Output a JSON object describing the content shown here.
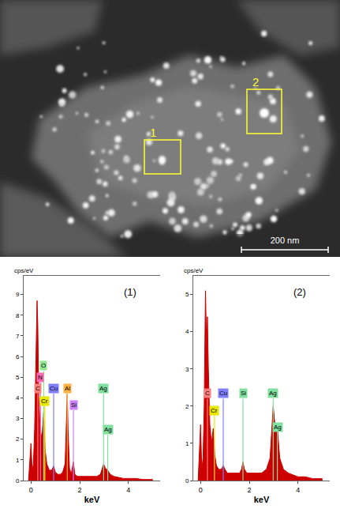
{
  "image": {
    "regions": [
      "1",
      "2"
    ],
    "scale_bar": "200 nm"
  },
  "chart_data": [
    {
      "type": "area",
      "title": "(1)",
      "y_label": "cps/eV",
      "x_label": "keV",
      "color": "#cc0000",
      "x": [
        -0.1,
        0,
        0.05,
        0.1,
        0.15,
        0.2,
        0.25,
        0.28,
        0.32,
        0.38,
        0.45,
        0.52,
        0.58,
        0.65,
        0.75,
        0.85,
        0.93,
        1.0,
        1.1,
        1.2,
        1.3,
        1.4,
        1.46,
        1.49,
        1.52,
        1.58,
        1.65,
        1.74,
        1.8,
        1.9,
        2.1,
        2.3,
        2.5,
        2.7,
        2.85,
        2.98,
        3.05,
        3.15,
        3.25,
        3.4,
        3.6,
        3.8,
        4.0,
        4.3,
        4.6,
        5.0
      ],
      "values": [
        0,
        1.8,
        0.5,
        0.8,
        2.5,
        6.0,
        8.7,
        7.5,
        4.0,
        2.5,
        2.0,
        3.3,
        1.5,
        0.8,
        0.5,
        0.5,
        0.7,
        0.4,
        0.3,
        0.3,
        0.4,
        0.8,
        2.8,
        4.2,
        2.5,
        0.6,
        0.3,
        0.9,
        0.3,
        0.2,
        0.2,
        0.2,
        0.2,
        0.2,
        0.3,
        0.8,
        0.6,
        0.5,
        0.3,
        0.2,
        0.15,
        0.1,
        0.1,
        0.1,
        0.05,
        0.05
      ],
      "xlim": [
        -0.3,
        5.3
      ],
      "xticks": [
        0,
        2,
        4
      ],
      "ylim": [
        0,
        9.9
      ],
      "yticks": [
        0,
        1,
        2,
        3,
        4,
        5,
        6,
        7,
        8,
        9
      ],
      "element_lines": [
        {
          "name": "C",
          "energy": 0.28,
          "height": 4.2,
          "color": "#ff7f7f"
        },
        {
          "name": "N",
          "energy": 0.39,
          "height": 4.75,
          "color": "#ff66b3"
        },
        {
          "name": "O",
          "energy": 0.525,
          "height": 5.3,
          "color": "#8fe88f"
        },
        {
          "name": "Cr",
          "energy": 0.57,
          "height": 3.6,
          "color": "#e6e600"
        },
        {
          "name": "Cu",
          "energy": 0.93,
          "height": 4.2,
          "color": "#8080ff"
        },
        {
          "name": "Al",
          "energy": 1.49,
          "height": 4.2,
          "color": "#ffb040"
        },
        {
          "name": "Si",
          "energy": 1.74,
          "height": 3.4,
          "color": "#cc80ff"
        },
        {
          "name": "Ag",
          "energy": 2.98,
          "height": 4.2,
          "color": "#80e0a0"
        },
        {
          "name": "Ag",
          "energy": 3.15,
          "height": 2.2,
          "color": "#80e0a0"
        }
      ]
    },
    {
      "type": "area",
      "title": "(2)",
      "y_label": "cps/eV",
      "x_label": "keV",
      "color": "#cc0000",
      "x": [
        -0.1,
        0,
        0.05,
        0.1,
        0.15,
        0.2,
        0.25,
        0.28,
        0.32,
        0.38,
        0.45,
        0.52,
        0.58,
        0.65,
        0.75,
        0.85,
        0.93,
        1.0,
        1.1,
        1.2,
        1.3,
        1.4,
        1.5,
        1.6,
        1.68,
        1.74,
        1.8,
        1.9,
        2.1,
        2.3,
        2.5,
        2.7,
        2.85,
        2.98,
        3.05,
        3.15,
        3.25,
        3.4,
        3.6,
        3.8,
        4.0,
        4.3,
        4.6,
        5.0
      ],
      "values": [
        0,
        1.5,
        0.3,
        0.6,
        2.0,
        5.1,
        3.5,
        4.4,
        3.0,
        1.5,
        1.0,
        1.4,
        0.7,
        0.4,
        0.3,
        0.3,
        0.4,
        0.3,
        0.2,
        0.2,
        0.2,
        0.2,
        0.2,
        0.2,
        0.3,
        0.5,
        0.3,
        0.2,
        0.2,
        0.2,
        0.2,
        0.3,
        0.6,
        2.0,
        1.5,
        1.4,
        0.6,
        0.3,
        0.2,
        0.15,
        0.1,
        0.1,
        0.05,
        0.05
      ],
      "xlim": [
        -0.3,
        5.3
      ],
      "xticks": [
        0,
        2,
        4
      ],
      "ylim": [
        0,
        5.5
      ],
      "yticks": [
        0,
        1,
        2,
        3,
        4,
        5
      ],
      "element_lines": [
        {
          "name": "C",
          "energy": 0.28,
          "height": 2.2,
          "color": "#ff7f7f"
        },
        {
          "name": "Cr",
          "energy": 0.57,
          "height": 1.75,
          "color": "#e6e600"
        },
        {
          "name": "Cu",
          "energy": 0.93,
          "height": 2.2,
          "color": "#8080ff"
        },
        {
          "name": "Si",
          "energy": 1.74,
          "height": 2.2,
          "color": "#80e0a0"
        },
        {
          "name": "Ag",
          "energy": 2.98,
          "height": 2.2,
          "color": "#80e0a0"
        },
        {
          "name": "Ag",
          "energy": 3.15,
          "height": 1.3,
          "color": "#80e0a0"
        }
      ]
    }
  ]
}
